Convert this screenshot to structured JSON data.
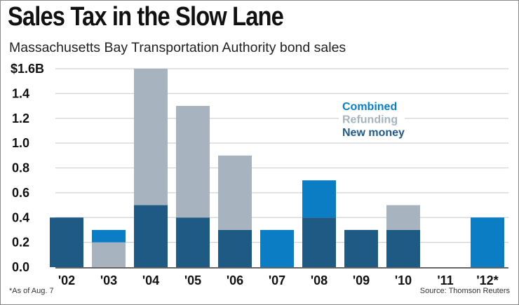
{
  "title": "Sales Tax in the Slow Lane",
  "subtitle": "Massachusetts Bay Transportation Authority bond sales",
  "footnote": "*As of Aug. 7",
  "source": "Source: Thomson Reuters",
  "colors": {
    "new_money": "#1f5a85",
    "refunding": "#a7b4bf",
    "combined": "#0a7dc4"
  },
  "chart_data": {
    "type": "bar",
    "stacked": true,
    "title": "Sales Tax in the Slow Lane",
    "xlabel": "",
    "ylabel": "",
    "ylim": [
      0,
      1.6
    ],
    "yticks": [
      "0.0",
      "0.2",
      "0.4",
      "0.6",
      "0.8",
      "1.0",
      "1.2",
      "1.4",
      "$1.6B"
    ],
    "categories": [
      "'02",
      "'03",
      "'04",
      "'05",
      "'06",
      "'07",
      "'08",
      "'09",
      "'10",
      "'11",
      "'12*"
    ],
    "legend_position": "center-right",
    "grid": true,
    "series": [
      {
        "name": "New money",
        "values": [
          0.4,
          0,
          0.5,
          0.4,
          0.3,
          0,
          0.4,
          0.3,
          0.3,
          0,
          0
        ]
      },
      {
        "name": "Refunding",
        "values": [
          0,
          0.2,
          1.1,
          0.9,
          0.6,
          0,
          0,
          0,
          0.2,
          0,
          0
        ]
      },
      {
        "name": "Combined",
        "values": [
          0,
          0.1,
          0,
          0,
          0,
          0.3,
          0.3,
          0,
          0,
          0,
          0.4
        ]
      }
    ],
    "legend": [
      "Combined",
      "Refunding",
      "New money"
    ]
  }
}
